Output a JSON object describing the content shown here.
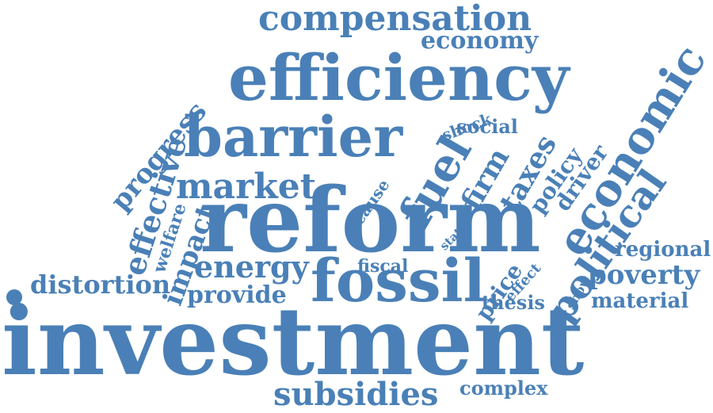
{
  "accent_color": "#4a80b7",
  "words": {
    "investment": "investment",
    "reform": "reform",
    "efficiency": "efficiency",
    "barrier": "barrier",
    "fossil": "fossil",
    "economic": "economic",
    "compensation": "compensation",
    "subsidies": "subsidies",
    "political": "political",
    "fuel": "fuel",
    "market": "market",
    "energy": "energy",
    "economy": "economy",
    "poverty": "poverty",
    "effective": "effective",
    "distortion": "distortion",
    "impact": "impact",
    "progress": "progress",
    "provide": "provide",
    "firm": "firm",
    "taxes": "taxes",
    "regional": "regional",
    "material": "material",
    "complex": "complex",
    "policy": "policy",
    "driver": "driver",
    "price": "price",
    "social": "social",
    "thesis": "thesis",
    "fiscal": "fiscal",
    "welfare": "welfare",
    "cause": "cause",
    "shock": "shock",
    "effect": "effect",
    "show": "show",
    "state": "state"
  }
}
